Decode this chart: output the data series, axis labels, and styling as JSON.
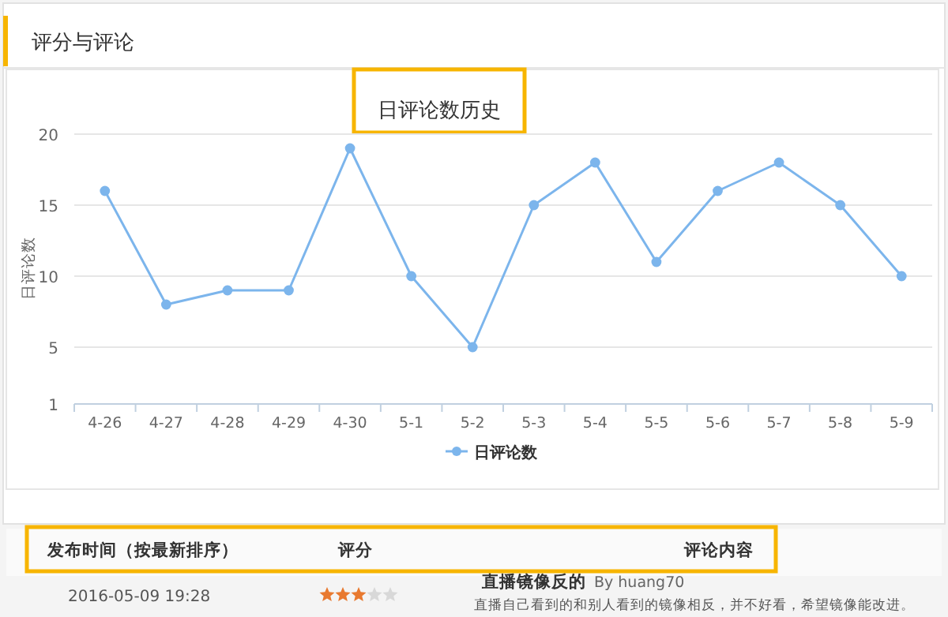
{
  "chart_data": {
    "type": "line",
    "title": "日评论数历史",
    "ylabel": "日评论数",
    "categories": [
      "4-26",
      "4-27",
      "4-28",
      "4-29",
      "4-30",
      "5-1",
      "5-2",
      "5-3",
      "5-4",
      "5-5",
      "5-6",
      "5-7",
      "5-8",
      "5-9"
    ],
    "series": [
      {
        "name": "日评论数",
        "color": "#7cb5ec",
        "values": [
          16,
          8,
          9,
          9,
          19,
          10,
          5,
          15,
          18,
          11,
          16,
          18,
          15,
          10
        ]
      }
    ],
    "ylim": [
      1,
      20
    ],
    "yticks": [
      1,
      5,
      10,
      15,
      20
    ],
    "grid": "y",
    "legend": "bottom",
    "marker": "circle",
    "annotations": [
      "评分与评论",
      "发布时间（按最新排序）",
      "评分",
      "评论内容",
      "2016-05-09 19:28",
      "直播镜像反的",
      "By huang70",
      "直播自己看到的和别人看到的镜像相反，并不好看，希望镜像能改进。"
    ]
  }
}
